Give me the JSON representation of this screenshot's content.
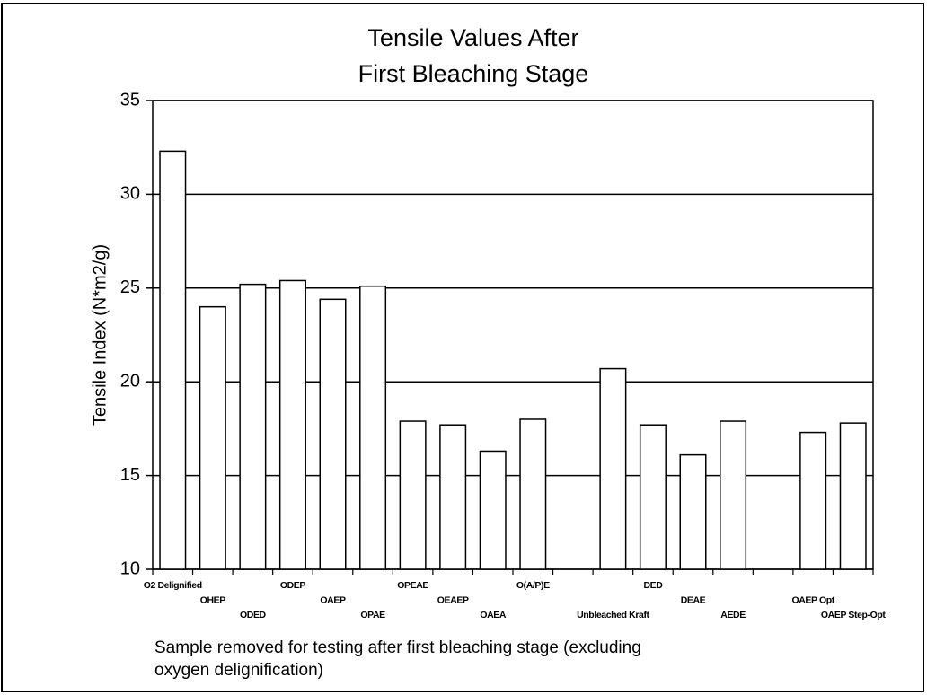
{
  "chart_data": {
    "type": "bar",
    "title": [
      "Tensile Values After",
      "First Bleaching Stage"
    ],
    "ylabel": "Tensile Index (N*m2/g)",
    "xlabel": [
      "Sample removed for testing after first bleaching stage (excluding",
      "oxygen delignification)"
    ],
    "categories": [
      "O2 Delignified",
      "OHEP",
      "ODED",
      "ODEP",
      "OAEP",
      "OPAE",
      "OPEAE",
      "OEAEP",
      "OAEA",
      "O(A/P)E",
      null,
      "Unbleached Kraft",
      "DED",
      "DEAE",
      "AEDE",
      null,
      "OAEP Opt",
      "OAEP Step-Opt"
    ],
    "values": [
      32.3,
      24.0,
      25.2,
      25.4,
      24.4,
      25.1,
      17.9,
      17.7,
      16.3,
      18.0,
      null,
      20.7,
      17.7,
      16.1,
      17.9,
      null,
      17.3,
      17.8
    ],
    "color": "#ffffff",
    "ylim": [
      10,
      35
    ],
    "yticks": [
      10,
      15,
      20,
      25,
      30,
      35
    ],
    "grid": true
  }
}
